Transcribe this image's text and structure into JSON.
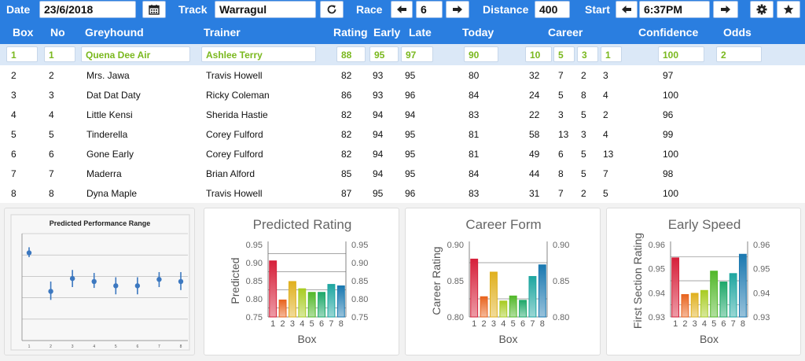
{
  "topbar": {
    "date_label": "Date",
    "date_value": "23/6/2018",
    "track_label": "Track",
    "track_value": "Warragul",
    "race_label": "Race",
    "race_value": "6",
    "distance_label": "Distance",
    "distance_value": "400",
    "start_label": "Start",
    "start_value": "6:37PM"
  },
  "headers": {
    "box": "Box",
    "no": "No",
    "greyhound": "Greyhound",
    "trainer": "Trainer",
    "rating": "Rating",
    "early": "Early",
    "late": "Late",
    "today": "Today",
    "career": "Career",
    "confidence": "Confidence",
    "odds": "Odds"
  },
  "selected": {
    "box": "1",
    "no": "1",
    "name": "Quena Dee Air",
    "trainer": "Ashlee Terry",
    "rating": "88",
    "early": "95",
    "late": "97",
    "today": "90",
    "c1": "10",
    "c2": "5",
    "c3": "3",
    "c4": "1",
    "confidence": "100",
    "odds": "2"
  },
  "rows": [
    {
      "box": "2",
      "no": "2",
      "name": "Mrs. Jawa",
      "trainer": "Travis Howell",
      "rating": "82",
      "early": "93",
      "late": "95",
      "today": "80",
      "c1": "32",
      "c2": "7",
      "c3": "2",
      "c4": "3",
      "confidence": "97"
    },
    {
      "box": "3",
      "no": "3",
      "name": "Dat Dat Daty",
      "trainer": "Ricky Coleman",
      "rating": "86",
      "early": "93",
      "late": "96",
      "today": "84",
      "c1": "24",
      "c2": "5",
      "c3": "8",
      "c4": "4",
      "confidence": "100"
    },
    {
      "box": "4",
      "no": "4",
      "name": "Little Kensi",
      "trainer": "Sherida Hastie",
      "rating": "82",
      "early": "94",
      "late": "94",
      "today": "83",
      "c1": "22",
      "c2": "3",
      "c3": "5",
      "c4": "2",
      "confidence": "96"
    },
    {
      "box": "5",
      "no": "5",
      "name": "Tinderella",
      "trainer": "Corey Fulford",
      "rating": "82",
      "early": "94",
      "late": "95",
      "today": "81",
      "c1": "58",
      "c2": "13",
      "c3": "3",
      "c4": "4",
      "confidence": "99"
    },
    {
      "box": "6",
      "no": "6",
      "name": "Gone Early",
      "trainer": "Corey Fulford",
      "rating": "82",
      "early": "94",
      "late": "95",
      "today": "81",
      "c1": "49",
      "c2": "6",
      "c3": "5",
      "c4": "13",
      "confidence": "100"
    },
    {
      "box": "7",
      "no": "7",
      "name": "Maderra",
      "trainer": "Brian Alford",
      "rating": "85",
      "early": "94",
      "late": "95",
      "today": "84",
      "c1": "44",
      "c2": "8",
      "c3": "5",
      "c4": "7",
      "confidence": "98"
    },
    {
      "box": "8",
      "no": "8",
      "name": "Dyna Maple",
      "trainer": "Travis Howell",
      "rating": "87",
      "early": "95",
      "late": "96",
      "today": "83",
      "c1": "31",
      "c2": "7",
      "c3": "2",
      "c4": "5",
      "confidence": "100"
    }
  ],
  "colors": {
    "accent": "#2a7ee0",
    "selected_text": "#7ab81e",
    "bars": [
      "#d6203a",
      "#e8641e",
      "#e0b01e",
      "#a8cc22",
      "#52b82a",
      "#1ea86a",
      "#1ea6a0",
      "#1a78b0"
    ]
  },
  "icons": {
    "calendar": "calendar-icon",
    "refresh": "refresh-icon",
    "prev": "arrow-left-icon",
    "next": "arrow-right-icon",
    "settings": "gear-icon",
    "favorite": "star-icon"
  },
  "chart_data": [
    {
      "type": "scatter",
      "title": "Predicted Performance Range",
      "x": [
        1,
        2,
        3,
        4,
        5,
        6,
        7,
        8
      ],
      "y": [
        0.905,
        0.815,
        0.845,
        0.838,
        0.828,
        0.828,
        0.843,
        0.838
      ],
      "err_low": [
        0.895,
        0.795,
        0.825,
        0.823,
        0.808,
        0.808,
        0.825,
        0.818
      ],
      "err_high": [
        0.918,
        0.838,
        0.865,
        0.858,
        0.848,
        0.848,
        0.86,
        0.86
      ],
      "ylim": [
        0.7,
        0.95
      ],
      "xlabel": "",
      "ylabel": "",
      "grid": true
    },
    {
      "type": "bar",
      "title": "Predicted Rating",
      "categories": [
        "1",
        "2",
        "3",
        "4",
        "5",
        "6",
        "7",
        "8"
      ],
      "values": [
        0.905,
        0.797,
        0.848,
        0.828,
        0.818,
        0.818,
        0.84,
        0.836
      ],
      "xlabel": "Box",
      "ylabel": "Predicted",
      "ylim": [
        0.75,
        0.95
      ],
      "yticks": [
        "0.75",
        "0.80",
        "0.85",
        "0.90",
        "0.95"
      ],
      "grid": true
    },
    {
      "type": "bar",
      "title": "Career Form",
      "categories": [
        "1",
        "2",
        "3",
        "4",
        "5",
        "6",
        "7",
        "8"
      ],
      "values": [
        0.88,
        0.828,
        0.862,
        0.822,
        0.829,
        0.823,
        0.856,
        0.872
      ],
      "xlabel": "Box",
      "ylabel": "Career Rating",
      "ylim": [
        0.8,
        0.9
      ],
      "yticks": [
        "0.80",
        "0.85",
        "0.90"
      ],
      "grid": true
    },
    {
      "type": "bar",
      "title": "Early Speed",
      "categories": [
        "1",
        "2",
        "3",
        "4",
        "5",
        "6",
        "7",
        "8"
      ],
      "values": [
        0.9545,
        0.9393,
        0.9398,
        0.941,
        0.949,
        0.9445,
        0.948,
        0.956
      ],
      "xlabel": "Box",
      "ylabel": "First Section Rating",
      "ylim": [
        0.93,
        0.96
      ],
      "yticks": [
        "0.93",
        "0.94",
        "0.95",
        "0.96"
      ],
      "grid": true
    }
  ]
}
